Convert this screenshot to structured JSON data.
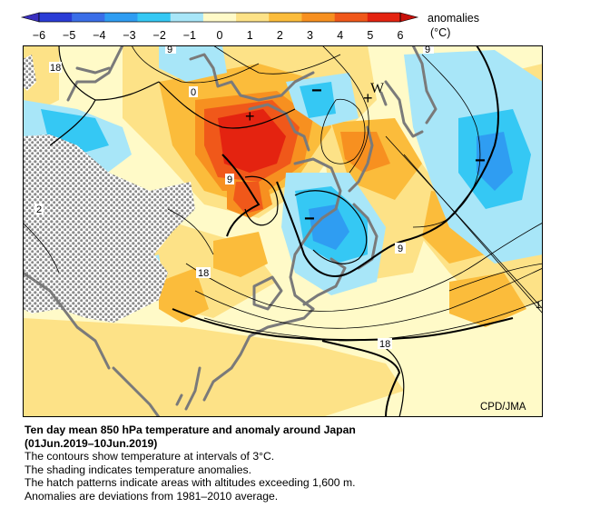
{
  "legend": {
    "title": "anomalies",
    "unit": "(°C)",
    "ticks": [
      "−6",
      "−5",
      "−4",
      "−3",
      "−2",
      "−1",
      "0",
      "1",
      "2",
      "3",
      "4",
      "5",
      "6"
    ],
    "colors": [
      "#2a3cd6",
      "#3a6ee8",
      "#2f9df2",
      "#35c8f4",
      "#a8e6f8",
      "#fffac8",
      "#fde287",
      "#fbbc3b",
      "#f79020",
      "#f0581a",
      "#e42310"
    ]
  },
  "map": {
    "contour_labels": [
      "18",
      "9",
      "0",
      "9",
      "2",
      "9",
      "18",
      "18",
      "9",
      "1"
    ],
    "symbols": [
      "−",
      "+",
      "W",
      "+",
      "−",
      "−"
    ],
    "credit": "CPD/JMA"
  },
  "caption": {
    "title": "Ten day mean 850 hPa temperature and anomaly around Japan",
    "period": "(01Jun.2019–10Jun.2019)",
    "lines": [
      "The contours show temperature at intervals of 3°C.",
      "The shading indicates temperature anomalies.",
      "The hatch patterns indicate areas with altitudes exceeding 1,600 m.",
      "Anomalies are deviations from 1981–2010 average."
    ]
  }
}
